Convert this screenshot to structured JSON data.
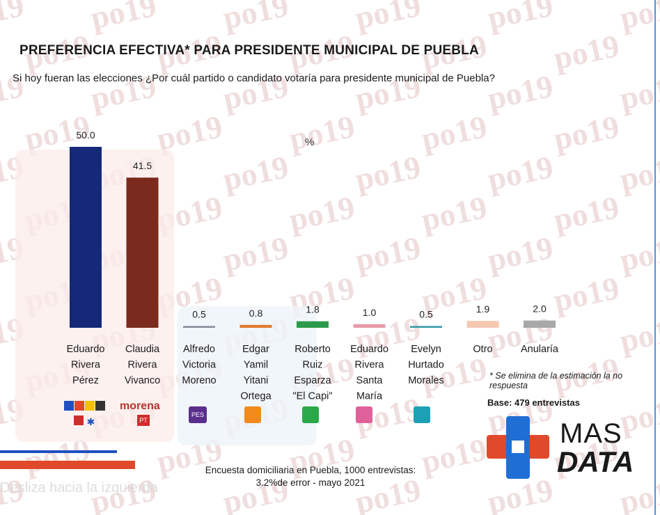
{
  "title": "PREFERENCIA EFECTIVA* PARA PRESIDENTE MUNICIPAL DE PUEBLA",
  "subtitle": "Si hoy fueran las elecciones ¿Por cuál partido o candidato votaría para presidente municipal de Puebla?",
  "unit": "%",
  "watermark": "po19",
  "logos": {
    "morena": "morena",
    "pt": "PT",
    "pes": "PES"
  },
  "note": "* Se elimina de la estimación la no respuesta",
  "base": "Base: 479 entrevistas",
  "brand": {
    "line1": "MAS",
    "line2": "DATA"
  },
  "footer": {
    "line1": "Encuesta domiciliaria en Puebla, 1000 entrevistas:",
    "line2": "3.2%de error - mayo 2021"
  },
  "overlay_text": "Desliza hacia la izquierda",
  "colors": {
    "eduardo_rivera_perez": "#142a78",
    "claudia_rivera_vivanco": "#7b2a1e",
    "alfredo_victoria_moreno": "#8a8a9a",
    "edgar_yamil": "#e07a2a",
    "roberto_ruiz": "#2a9a4a",
    "eduardo_rivera_santa_maria": "#e89aa8",
    "evelyn_hurtado": "#3a9aa8",
    "otro": "#f5c9b0",
    "anularia": "#a8a8a8"
  },
  "chart_data": {
    "type": "bar",
    "title": "PREFERENCIA EFECTIVA* PARA PRESIDENTE MUNICIPAL DE PUEBLA",
    "ylabel": "%",
    "ylim": [
      0,
      50
    ],
    "grid": false,
    "categories": [
      [
        "Eduardo",
        "Rivera",
        "Pérez"
      ],
      [
        "Claudia",
        "Rivera",
        "Vivanco"
      ],
      [
        "Alfredo",
        "Victoria",
        "Moreno"
      ],
      [
        "Edgar",
        "Yamil",
        "Yitani",
        "Ortega"
      ],
      [
        "Roberto",
        "Ruiz",
        "Esparza",
        "\"El Capi\""
      ],
      [
        "Eduardo",
        "Rivera",
        "Santa",
        "María"
      ],
      [
        "Evelyn",
        "Hurtado",
        "Morales"
      ],
      [
        "Otro"
      ],
      [
        "Anularía"
      ]
    ],
    "values": [
      50.0,
      41.5,
      0.5,
      0.8,
      1.8,
      1.0,
      0.5,
      1.9,
      2.0
    ],
    "value_labels": [
      "50.0",
      "41.5",
      "0.5",
      "0.8",
      "1.8",
      "1.0",
      "0.5",
      "1.9",
      "2.0"
    ],
    "colors": [
      "#142a78",
      "#7b2a1e",
      "#8a8a9a",
      "#e07a2a",
      "#2a9a4a",
      "#e89aa8",
      "#3a9aa8",
      "#f5c9b0",
      "#a8a8a8"
    ]
  }
}
